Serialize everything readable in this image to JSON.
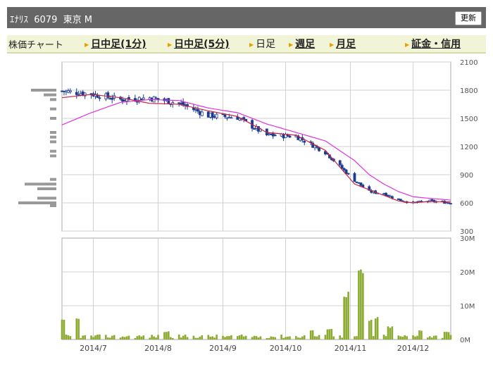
{
  "header": {
    "title": "ｴﾅﾘｽ  6079  東京 M",
    "refresh_label": "更新"
  },
  "nav": {
    "label": "株価チャート",
    "items": [
      {
        "label": "日中足(1分)",
        "link": true
      },
      {
        "label": "日中足(5分)",
        "link": true
      },
      {
        "label": "日足",
        "link": false
      },
      {
        "label": "週足",
        "link": true
      },
      {
        "label": "月足",
        "link": true
      },
      {
        "label": "証金・信用",
        "link": true
      }
    ]
  },
  "colors": {
    "up": "#ffffff",
    "down": "#1a3d8f",
    "ma_short": "#cc2244",
    "ma_long": "#dd33dd",
    "volume": "#8aaa30",
    "profile": "#999999",
    "grid": "#d0d0d0"
  },
  "chart_data": [
    {
      "type": "candlestick",
      "price_axis": {
        "ticks": [
          "2100",
          "1800",
          "1500",
          "1200",
          "900",
          "600",
          "300"
        ],
        "range": [
          300,
          2100
        ]
      },
      "x_axis": {
        "ticks": [
          "2014/7",
          "2014/8",
          "2014/9",
          "2014/10",
          "2014/11",
          "2014/12"
        ],
        "range": [
          "2014-06-16",
          "2014-12-19"
        ]
      },
      "close": [
        {
          "t": "2014-06-16",
          "v": 1790
        },
        {
          "t": "2014-06-30",
          "v": 1760
        },
        {
          "t": "2014-07-14",
          "v": 1700
        },
        {
          "t": "2014-07-28",
          "v": 1720
        },
        {
          "t": "2014-08-11",
          "v": 1660
        },
        {
          "t": "2014-08-25",
          "v": 1530
        },
        {
          "t": "2014-09-08",
          "v": 1510
        },
        {
          "t": "2014-09-22",
          "v": 1320
        },
        {
          "t": "2014-10-06",
          "v": 1310
        },
        {
          "t": "2014-10-20",
          "v": 1140
        },
        {
          "t": "2014-11-03",
          "v": 840
        },
        {
          "t": "2014-11-10",
          "v": 720
        },
        {
          "t": "2014-11-17",
          "v": 700
        },
        {
          "t": "2014-11-24",
          "v": 630
        },
        {
          "t": "2014-12-01",
          "v": 600
        },
        {
          "t": "2014-12-08",
          "v": 620
        },
        {
          "t": "2014-12-19",
          "v": 600
        }
      ],
      "ma_short": [
        {
          "t": "2014-06-16",
          "v": 1720
        },
        {
          "t": "2014-06-30",
          "v": 1755
        },
        {
          "t": "2014-07-14",
          "v": 1720
        },
        {
          "t": "2014-07-28",
          "v": 1660
        },
        {
          "t": "2014-08-11",
          "v": 1650
        },
        {
          "t": "2014-08-25",
          "v": 1580
        },
        {
          "t": "2014-09-08",
          "v": 1520
        },
        {
          "t": "2014-09-22",
          "v": 1350
        },
        {
          "t": "2014-10-06",
          "v": 1320
        },
        {
          "t": "2014-10-20",
          "v": 1160
        },
        {
          "t": "2014-11-03",
          "v": 800
        },
        {
          "t": "2014-11-10",
          "v": 740
        },
        {
          "t": "2014-11-17",
          "v": 680
        },
        {
          "t": "2014-11-24",
          "v": 620
        },
        {
          "t": "2014-12-01",
          "v": 600
        },
        {
          "t": "2014-12-08",
          "v": 615
        },
        {
          "t": "2014-12-19",
          "v": 610
        }
      ],
      "ma_long": [
        {
          "t": "2014-06-16",
          "v": 1430
        },
        {
          "t": "2014-06-30",
          "v": 1560
        },
        {
          "t": "2014-07-14",
          "v": 1670
        },
        {
          "t": "2014-07-28",
          "v": 1700
        },
        {
          "t": "2014-08-11",
          "v": 1690
        },
        {
          "t": "2014-08-25",
          "v": 1610
        },
        {
          "t": "2014-09-08",
          "v": 1560
        },
        {
          "t": "2014-09-22",
          "v": 1440
        },
        {
          "t": "2014-10-06",
          "v": 1350
        },
        {
          "t": "2014-10-20",
          "v": 1260
        },
        {
          "t": "2014-11-03",
          "v": 1050
        },
        {
          "t": "2014-11-10",
          "v": 900
        },
        {
          "t": "2014-11-17",
          "v": 800
        },
        {
          "t": "2014-11-24",
          "v": 720
        },
        {
          "t": "2014-12-01",
          "v": 665
        },
        {
          "t": "2014-12-08",
          "v": 650
        },
        {
          "t": "2014-12-19",
          "v": 630
        }
      ],
      "volume_profile": [
        {
          "price": 1800,
          "size": 4
        },
        {
          "price": 1750,
          "size": 2
        },
        {
          "price": 1700,
          "size": 1
        },
        {
          "price": 1600,
          "size": 1
        },
        {
          "price": 1500,
          "size": 1
        },
        {
          "price": 1350,
          "size": 1
        },
        {
          "price": 1300,
          "size": 1
        },
        {
          "price": 1250,
          "size": 1
        },
        {
          "price": 1150,
          "size": 1
        },
        {
          "price": 1100,
          "size": 1
        },
        {
          "price": 850,
          "size": 1
        },
        {
          "price": 800,
          "size": 5
        },
        {
          "price": 750,
          "size": 3
        },
        {
          "price": 650,
          "size": 3
        },
        {
          "price": 600,
          "size": 6
        },
        {
          "price": 570,
          "size": 1
        }
      ]
    },
    {
      "type": "bar",
      "y_axis": {
        "ticks": [
          "30M",
          "20M",
          "10M",
          "0M"
        ],
        "range": [
          0,
          30000000
        ]
      },
      "peaks": [
        {
          "t": "2014-06-16",
          "v": 6000000
        },
        {
          "t": "2014-06-23",
          "v": 6500000
        },
        {
          "t": "2014-08-05",
          "v": 2500000
        },
        {
          "t": "2014-10-13",
          "v": 3000000
        },
        {
          "t": "2014-10-22",
          "v": 3500000
        },
        {
          "t": "2014-10-30",
          "v": 14500000
        },
        {
          "t": "2014-11-06",
          "v": 21000000
        },
        {
          "t": "2014-11-10",
          "v": 6000000
        },
        {
          "t": "2014-11-14",
          "v": 7000000
        },
        {
          "t": "2014-11-20",
          "v": 4000000
        },
        {
          "t": "2014-12-05",
          "v": 3000000
        },
        {
          "t": "2014-12-17",
          "v": 2500000
        }
      ]
    }
  ]
}
